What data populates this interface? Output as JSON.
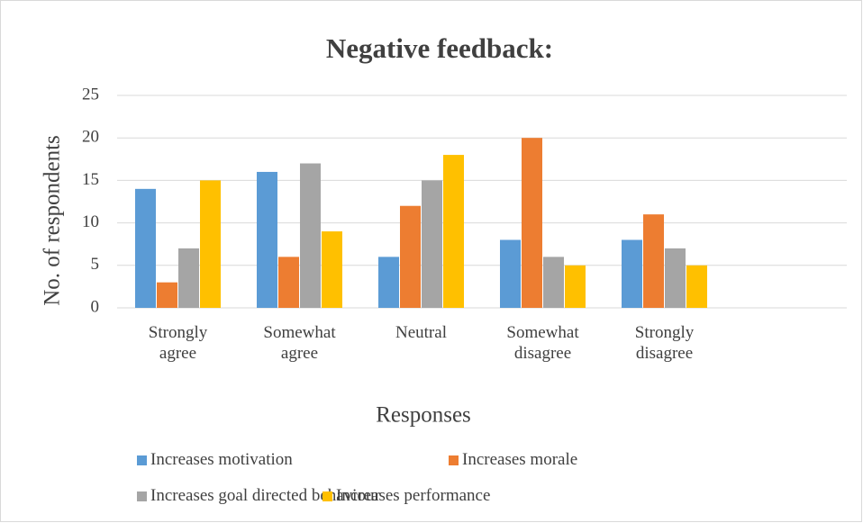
{
  "chart_data": {
    "type": "bar",
    "title": "Negative feedback:",
    "x_label": "Responses",
    "y_label": "No.  of respondents",
    "categories": [
      "Strongly agree",
      "Somewhat agree",
      "Neutral",
      "Somewhat disagree",
      "Strongly disagree",
      null
    ],
    "series": [
      {
        "name": "Increases motivation",
        "color": "#5b9bd5",
        "values": [
          14,
          16,
          6,
          8,
          8,
          null
        ]
      },
      {
        "name": "Increases morale",
        "color": "#ed7d31",
        "values": [
          3,
          6,
          12,
          20,
          11,
          null
        ]
      },
      {
        "name": "Increases goal directed behaviour",
        "color": "#a5a5a5",
        "values": [
          7,
          17,
          15,
          6,
          7,
          null
        ]
      },
      {
        "name": "Increases performance",
        "color": "#ffc000",
        "values": [
          15,
          9,
          18,
          5,
          5,
          null
        ]
      }
    ],
    "ylim": [
      0,
      25
    ],
    "yticks": [
      0,
      5,
      10,
      15,
      20,
      25
    ],
    "grid": true,
    "legend": "bottom"
  }
}
